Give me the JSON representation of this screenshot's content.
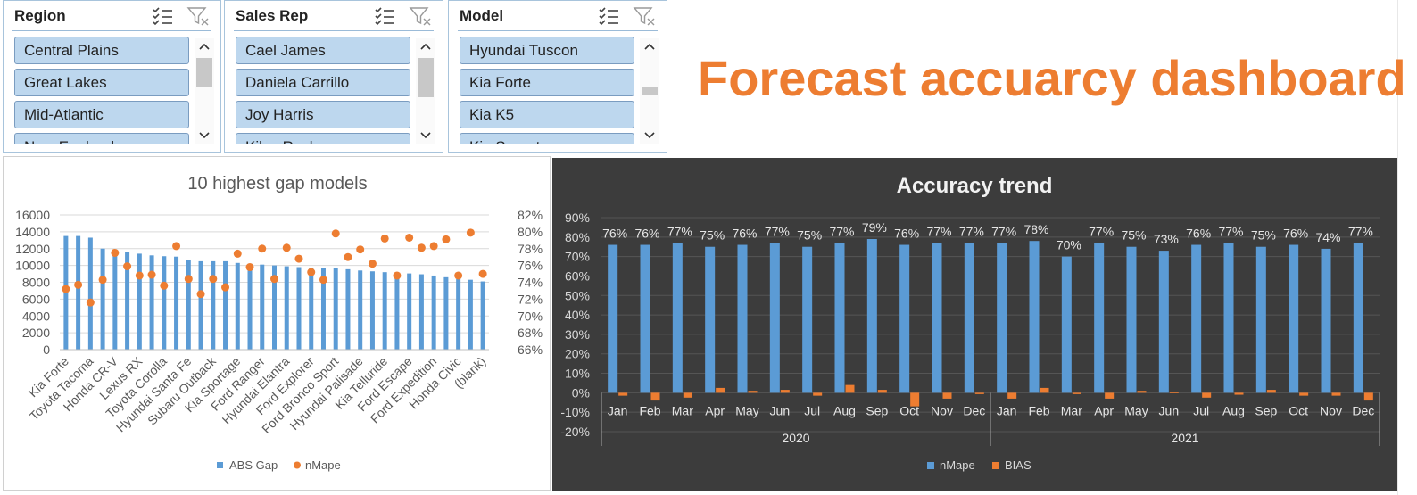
{
  "dashboard_title": "Forecast accuarcy dashboard",
  "slicers": [
    {
      "title": "Region",
      "items": [
        "Central Plains",
        "Great Lakes",
        "Mid-Atlantic",
        "New England"
      ],
      "thumb_top": 22,
      "thumb_height": 32
    },
    {
      "title": "Sales Rep",
      "items": [
        "Cael James",
        "Daniela Carrillo",
        "Joy Harris",
        "Kiley Rock"
      ],
      "thumb_top": 22,
      "thumb_height": 44
    },
    {
      "title": "Model",
      "items": [
        "Hyundai Tuscon",
        "Kia Forte",
        "Kia K5",
        "Kia Sorento"
      ],
      "thumb_top": 54,
      "thumb_height": 9
    }
  ],
  "chart_data": [
    {
      "type": "bar",
      "title": "10 highest gap models",
      "categories": [
        "Kia Forte",
        "",
        "Toyota Tacoma",
        "",
        "Honda CR-V",
        "",
        "Lexus RX",
        "",
        "Toyota Corolla",
        "",
        "Hyundai Santa Fe",
        "",
        "Subaru Outback",
        "",
        "Kia Sportage",
        "",
        "Ford Ranger",
        "",
        "Hyundai Elantra",
        "",
        "Ford Explorer",
        "",
        "Ford Bronco Sport",
        "",
        "Hyundai Palisade",
        "",
        "Kia Telluride",
        "",
        "Ford Escape",
        "",
        "Ford Expedition",
        "",
        "Honda Civic",
        "",
        "(blank)"
      ],
      "series": [
        {
          "name": "ABS Gap",
          "axis": "left",
          "type": "bar",
          "values": [
            13500,
            13500,
            13300,
            12000,
            11900,
            11600,
            11400,
            11200,
            11100,
            11050,
            10600,
            10500,
            10500,
            10500,
            10300,
            10200,
            10100,
            10000,
            9900,
            9800,
            9750,
            9700,
            9650,
            9550,
            9400,
            9300,
            9200,
            9100,
            9050,
            8950,
            8800,
            8600,
            8400,
            8300,
            8100
          ]
        },
        {
          "name": "nMape",
          "axis": "right",
          "type": "scatter",
          "values": [
            73.2,
            73.7,
            71.6,
            74.3,
            77.5,
            75.9,
            74.8,
            74.9,
            73.6,
            78.3,
            74.4,
            72.6,
            74.4,
            73.4,
            77.4,
            75.8,
            78.0,
            74.4,
            78.1,
            76.8,
            75.2,
            74.3,
            79.8,
            77.0,
            77.9,
            76.2,
            79.2,
            74.8,
            79.3,
            78.1,
            78.3,
            79.1,
            74.8,
            79.9,
            75.0
          ]
        }
      ],
      "left_axis": {
        "min": 0,
        "max": 16000,
        "ticks": [
          "0",
          "2000",
          "4000",
          "6000",
          "8000",
          "10000",
          "12000",
          "14000",
          "16000"
        ]
      },
      "right_axis": {
        "min": 66,
        "max": 82,
        "ticks": [
          "66%",
          "68%",
          "70%",
          "72%",
          "74%",
          "76%",
          "78%",
          "80%",
          "82%"
        ]
      },
      "legend": [
        "ABS Gap",
        "nMape"
      ],
      "legend_position": "bottom",
      "colors": {
        "bar": "#5b9bd5",
        "point": "#ed7d31"
      },
      "grid": true
    },
    {
      "type": "bar",
      "title": "Accuracy trend",
      "categories": [
        "Jan",
        "Feb",
        "Mar",
        "Apr",
        "May",
        "Jun",
        "Jul",
        "Aug",
        "Sep",
        "Oct",
        "Nov",
        "Dec",
        "Jan",
        "Feb",
        "Mar",
        "Apr",
        "May",
        "Jun",
        "Jul",
        "Aug",
        "Sep",
        "Oct",
        "Nov",
        "Dec"
      ],
      "groups": [
        {
          "label": "2020",
          "count": 12
        },
        {
          "label": "2021",
          "count": 12
        }
      ],
      "series": [
        {
          "name": "nMape",
          "values": [
            76,
            76,
            77,
            75,
            76,
            77,
            75,
            77,
            79,
            76,
            77,
            77,
            77,
            78,
            70,
            77,
            75,
            73,
            76,
            77,
            75,
            76,
            74,
            77
          ],
          "labels": [
            "76%",
            "76%",
            "77%",
            "75%",
            "76%",
            "77%",
            "75%",
            "77%",
            "79%",
            "76%",
            "77%",
            "77%",
            "77%",
            "78%",
            "70%",
            "77%",
            "75%",
            "73%",
            "76%",
            "77%",
            "75%",
            "76%",
            "74%",
            "77%"
          ]
        },
        {
          "name": "BIAS",
          "values": [
            -1.5,
            -4,
            -2.5,
            2.5,
            1,
            1.5,
            -1.5,
            4,
            1.5,
            -7,
            -3,
            -0.5,
            -3,
            2.5,
            -0.5,
            -3,
            1,
            0.5,
            -2.5,
            -1,
            1.5,
            -1.5,
            -1.5,
            -4
          ]
        }
      ],
      "y_axis": {
        "min": -20,
        "max": 90,
        "ticks": [
          "-20%",
          "-10%",
          "0%",
          "10%",
          "20%",
          "30%",
          "40%",
          "50%",
          "60%",
          "70%",
          "80%",
          "90%"
        ]
      },
      "legend": [
        "nMape",
        "BIAS"
      ],
      "legend_position": "bottom",
      "colors": {
        "nMape": "#5b9bd5",
        "BIAS": "#ed7d31"
      },
      "grid": true
    }
  ]
}
